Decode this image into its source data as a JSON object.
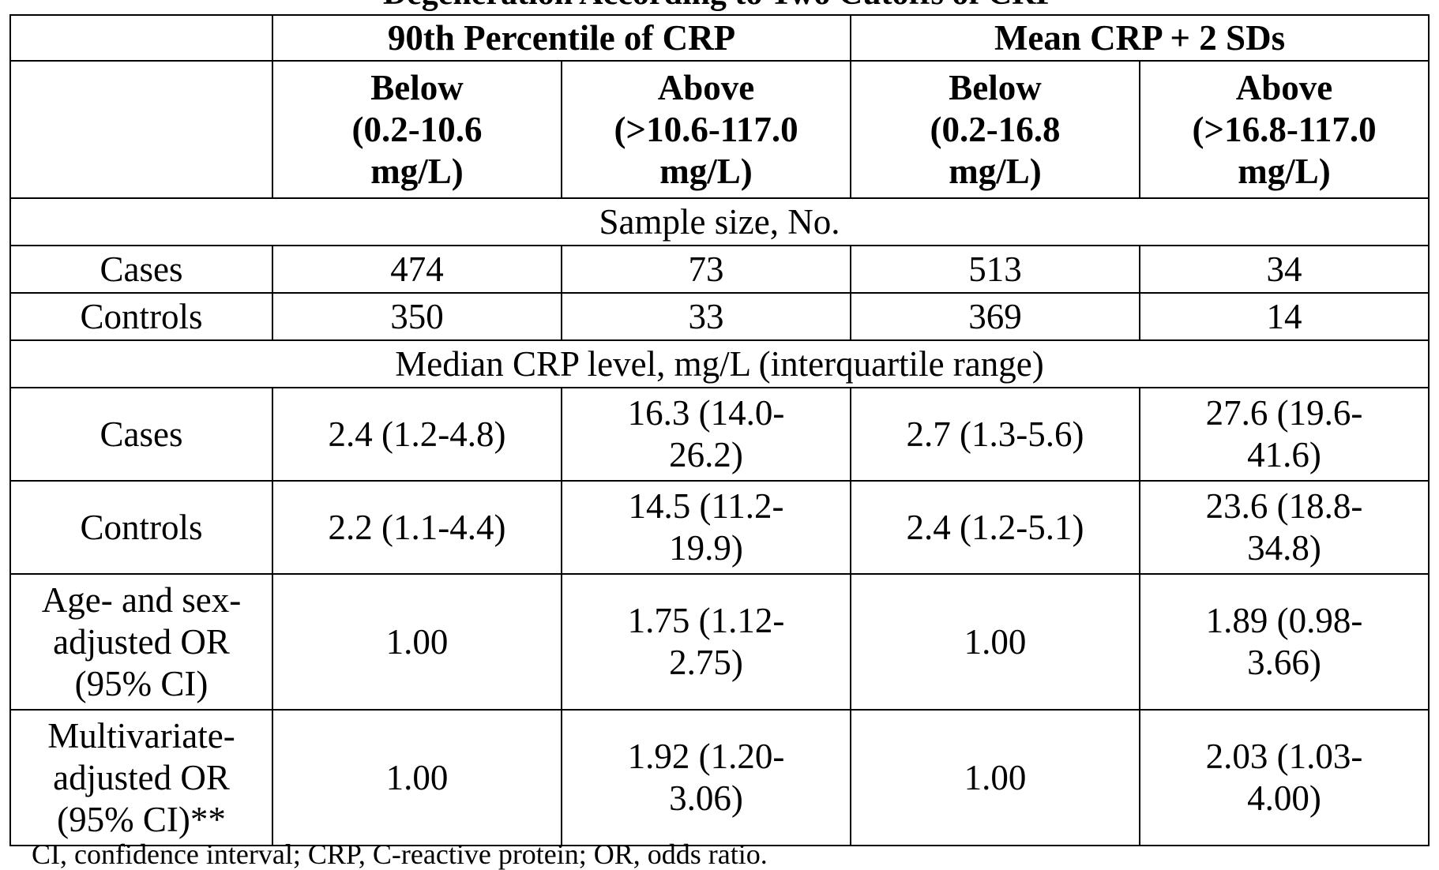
{
  "caption": "Degeneration According to Two Cutoffs of CRP",
  "footnote": "CI, confidence interval; CRP, C-reactive protein; OR, odds ratio.",
  "headers": {
    "group1": "90th Percentile of CRP",
    "group2": "Mean CRP + 2 SDs",
    "sub": [
      {
        "label": "Below",
        "range": "(0.2-10.6",
        "unit": "mg/L)"
      },
      {
        "label": "Above",
        "range": "(>10.6-117.0",
        "unit": "mg/L)"
      },
      {
        "label": "Below",
        "range": "(0.2-16.8",
        "unit": "mg/L)"
      },
      {
        "label": "Above",
        "range": "(>16.8-117.0",
        "unit": "mg/L)"
      }
    ]
  },
  "sections": {
    "sample_size": "Sample size, No.",
    "median": "Median CRP level, mg/L (interquartile range)"
  },
  "rows": {
    "sample_cases": {
      "label": [
        "Cases"
      ],
      "cells": [
        [
          "474"
        ],
        [
          "73"
        ],
        [
          "513"
        ],
        [
          "34"
        ]
      ]
    },
    "sample_controls": {
      "label": [
        "Controls"
      ],
      "cells": [
        [
          "350"
        ],
        [
          "33"
        ],
        [
          "369"
        ],
        [
          "14"
        ]
      ]
    },
    "median_cases": {
      "label": [
        "Cases"
      ],
      "cells": [
        [
          "2.4 (1.2-4.8)"
        ],
        [
          "16.3 (14.0-",
          "26.2)"
        ],
        [
          "2.7 (1.3-5.6)"
        ],
        [
          "27.6 (19.6-",
          "41.6)"
        ]
      ]
    },
    "median_controls": {
      "label": [
        "Controls"
      ],
      "cells": [
        [
          "2.2 (1.1-4.4)"
        ],
        [
          "14.5 (11.2-",
          "19.9)"
        ],
        [
          "2.4 (1.2-5.1)"
        ],
        [
          "23.6 (18.8-",
          "34.8)"
        ]
      ]
    },
    "age_sex_or": {
      "label": [
        "Age- and sex-",
        "adjusted OR",
        "(95% CI)"
      ],
      "cells": [
        [
          "1.00"
        ],
        [
          "1.75 (1.12-",
          "2.75)"
        ],
        [
          "1.00"
        ],
        [
          "1.89 (0.98-",
          "3.66)"
        ]
      ]
    },
    "multivariate_or": {
      "label": [
        "Multivariate-",
        "adjusted OR",
        "(95% CI)**"
      ],
      "cells": [
        [
          "1.00"
        ],
        [
          "1.92 (1.20-",
          "3.06)"
        ],
        [
          "1.00"
        ],
        [
          "2.03 (1.03-",
          "4.00)"
        ]
      ]
    }
  }
}
